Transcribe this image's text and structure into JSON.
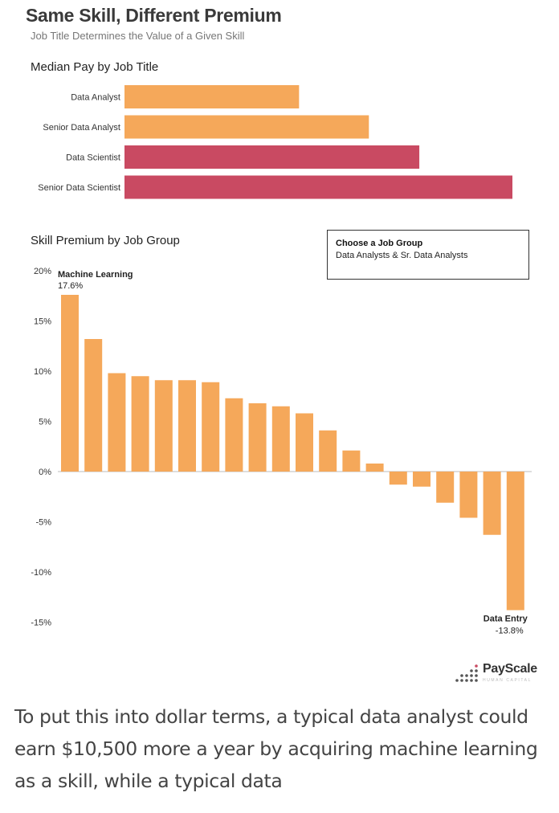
{
  "header": {
    "title": "Same Skill, Different Premium",
    "subtitle": "Job Title Determines the Value of a Given Skill"
  },
  "median_pay_title": "Median Pay by Job Title",
  "skill_premium_title": "Skill Premium by Job Group",
  "dropdown": {
    "label": "Choose a Job Group",
    "value": "Data Analysts & Sr. Data Analysts"
  },
  "colors": {
    "analyst": "#F5A85A",
    "scientist": "#C94A62"
  },
  "chart_data": [
    {
      "type": "bar",
      "orientation": "horizontal",
      "title": "Median Pay by Job Title",
      "categories": [
        "Data Analyst",
        "Senior Data Analyst",
        "Data Scientist",
        "Senior Data Scientist"
      ],
      "values": [
        0.45,
        0.63,
        0.76,
        1.0
      ],
      "value_unit": "relative to Senior Data Scientist",
      "colors": [
        "#F5A85A",
        "#F5A85A",
        "#C94A62",
        "#C94A62"
      ]
    },
    {
      "type": "bar",
      "title": "Skill Premium by Job Group",
      "ylim": [
        -15,
        20
      ],
      "yticks": [
        "20%",
        "15%",
        "10%",
        "5%",
        "0%",
        "-5%",
        "-10%",
        "-15%"
      ],
      "ytick_values": [
        20,
        15,
        10,
        5,
        0,
        -5,
        -10,
        -15
      ],
      "values": [
        17.6,
        13.2,
        9.8,
        9.5,
        9.1,
        9.1,
        8.9,
        7.3,
        6.8,
        6.5,
        5.8,
        4.1,
        2.1,
        0.8,
        -1.3,
        -1.5,
        -3.1,
        -4.6,
        -6.3,
        -13.8
      ],
      "color": "#F5A85A",
      "annotations": [
        {
          "index": 0,
          "label": "Machine Learning",
          "value": "17.6%"
        },
        {
          "index": 19,
          "label": "Data Entry",
          "value": "-13.8%"
        }
      ]
    }
  ],
  "logo": {
    "name": "PayScale",
    "tagline": "HUMAN CAPITAL"
  },
  "body_text": "To put this into dollar terms, a typical data analyst could earn $10,500 more a year by acquiring machine learning as a skill, while a typical data"
}
